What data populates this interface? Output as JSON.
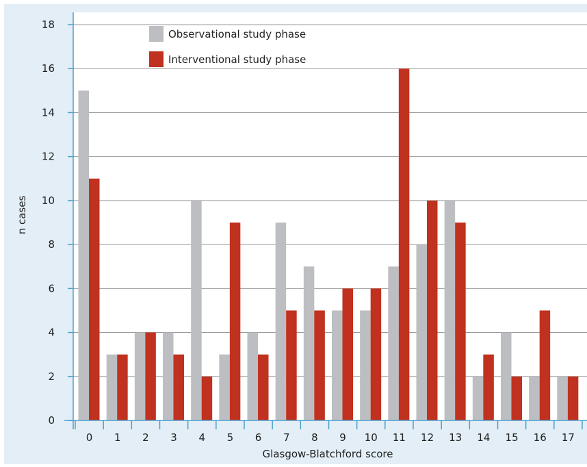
{
  "colors": {
    "panel_background": "#e3eef6",
    "plot_background": "#ffffff",
    "gridline": "#9a9a9a",
    "axis": "#4aa0cc",
    "series_observational": "#bdbec2",
    "series_interventional": "#c0311f"
  },
  "chart_data": {
    "type": "bar",
    "title": "",
    "xlabel": "Glasgow-Blatchford score",
    "ylabel": "n cases",
    "ylim": [
      0,
      18
    ],
    "yticks": [
      0,
      2,
      4,
      6,
      8,
      10,
      12,
      14,
      16,
      18
    ],
    "grid": true,
    "legend_position": "top-left",
    "categories": [
      "0",
      "1",
      "2",
      "3",
      "4",
      "5",
      "6",
      "7",
      "8",
      "9",
      "10",
      "11",
      "12",
      "13",
      "14",
      "15",
      "16",
      "17"
    ],
    "series": [
      {
        "name": "Observational study phase",
        "color": "#bdbec2",
        "values": [
          15,
          3,
          4,
          4,
          10,
          3,
          4,
          9,
          7,
          5,
          5,
          7,
          8,
          10,
          2,
          4,
          2,
          2
        ]
      },
      {
        "name": "Interventional study phase",
        "color": "#c0311f",
        "values": [
          11,
          3,
          4,
          3,
          2,
          9,
          3,
          5,
          5,
          6,
          6,
          16,
          10,
          9,
          3,
          2,
          5,
          2
        ]
      }
    ]
  }
}
